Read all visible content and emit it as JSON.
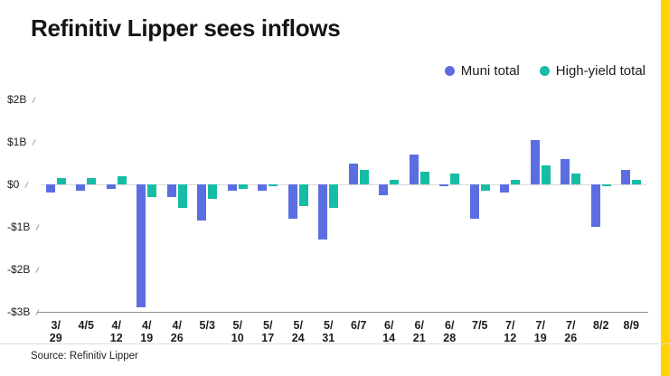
{
  "title": "Refinitiv Lipper sees inflows",
  "source": "Source: Refinitiv Lipper",
  "colors": {
    "muni_blue": "#5b6ee1",
    "high_yield_teal": "#16bda4",
    "accent_stripe_gold": "#ffd200",
    "zero_line": "#d9d9d9",
    "axis_line": "#8c8c8c",
    "footer_rule": "#dddddd",
    "tick_mark": "#9aa0a6"
  },
  "chart_data": {
    "type": "bar",
    "title": "Refinitiv Lipper sees inflows",
    "unit": "billions USD",
    "categories": [
      "3/29",
      "4/5",
      "4/12",
      "4/19",
      "4/26",
      "5/3",
      "5/10",
      "5/17",
      "5/24",
      "5/31",
      "6/7",
      "6/14",
      "6/21",
      "6/28",
      "7/5",
      "7/12",
      "7/19",
      "7/26",
      "8/2",
      "8/9"
    ],
    "tick_labels": [
      "3/\n29",
      "4/5",
      "4/\n12",
      "4/\n19",
      "4/\n26",
      "5/3",
      "5/\n10",
      "5/\n17",
      "5/\n24",
      "5/\n31",
      "6/7",
      "6/\n14",
      "6/\n21",
      "6/\n28",
      "7/5",
      "7/\n12",
      "7/\n19",
      "7/\n26",
      "8/2",
      "8/9"
    ],
    "series": [
      {
        "name": "Muni total",
        "color": "#5b6ee1",
        "values": [
          -0.2,
          -0.15,
          -0.1,
          -2.9,
          -0.3,
          -0.85,
          -0.15,
          -0.15,
          -0.8,
          -1.3,
          0.5,
          -0.25,
          0.7,
          -0.05,
          -0.8,
          -0.2,
          1.05,
          0.6,
          -1.0,
          0.35
        ]
      },
      {
        "name": "High-yield total",
        "color": "#16bda4",
        "values": [
          0.15,
          0.15,
          0.2,
          -0.3,
          -0.55,
          -0.35,
          -0.1,
          -0.05,
          -0.5,
          -0.55,
          0.35,
          0.1,
          0.3,
          0.25,
          -0.15,
          0.1,
          0.45,
          0.25,
          -0.05,
          0.1
        ]
      }
    ],
    "y_axis": {
      "ticks": [
        "$2B",
        "$1B",
        "$0",
        "-$1B",
        "-$2B",
        "-$3B"
      ],
      "tick_values": [
        2,
        1,
        0,
        -1,
        -2,
        -3
      ],
      "ylim": [
        -3,
        2
      ]
    },
    "legend_position": "top-right",
    "grid": false
  }
}
